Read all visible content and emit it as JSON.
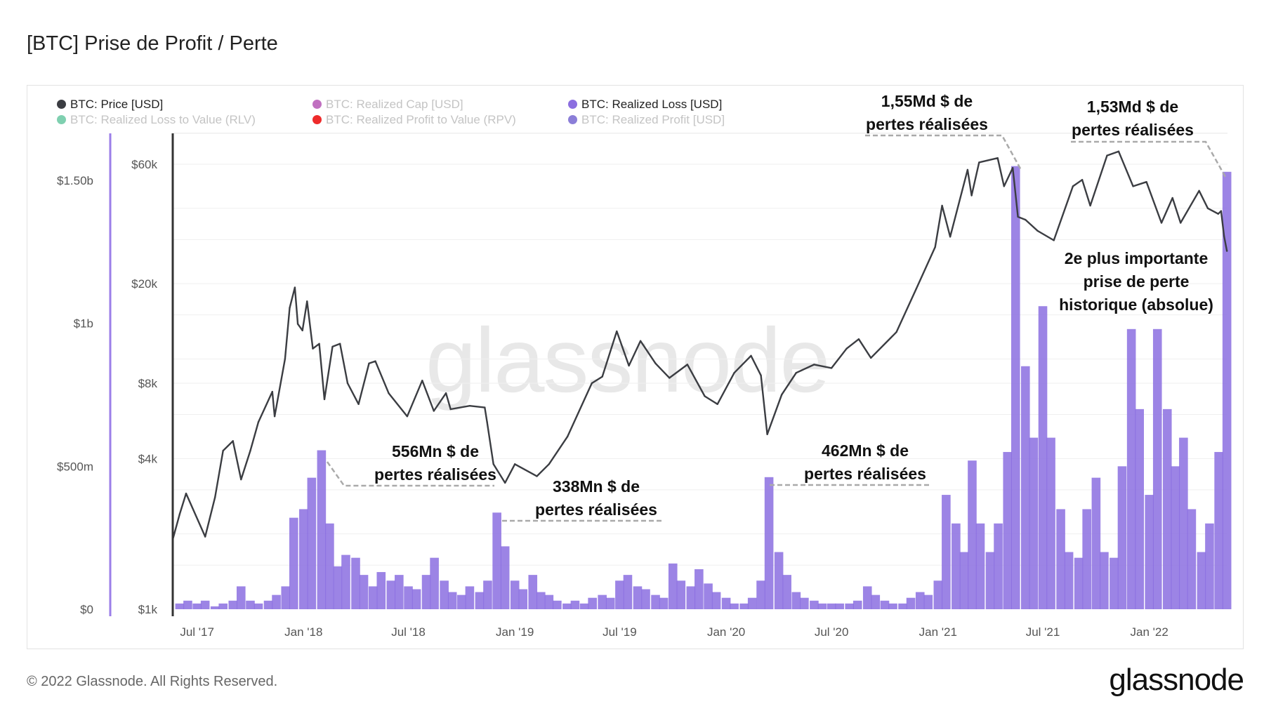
{
  "title": "[BTC] Prise de Profit / Perte",
  "footer": "© 2022 Glassnode. All Rights Reserved.",
  "logo": "glassnode",
  "watermark": "glassnode",
  "colors": {
    "price": "#3b3d42",
    "loss": "#8b6ee0",
    "loss_axis": "#9b7ee8",
    "grid": "#efefef",
    "leader": "#aaaaaa"
  },
  "legend": [
    {
      "label": "BTC: Price [USD]",
      "color": "#3b3d42",
      "active": true
    },
    {
      "label": "BTC: Realized Cap [USD]",
      "color": "#c070c0",
      "active": false
    },
    {
      "label": "BTC: Realized Loss [USD]",
      "color": "#8b6ee0",
      "active": true
    },
    {
      "label": "BTC: Realized Profit [USD]",
      "color": "#8b7ed8",
      "active": false
    },
    {
      "label": "BTC: Realized Loss to Value (RLV)",
      "color": "#7fd0b0",
      "active": false
    },
    {
      "label": "BTC: Realized Profit to Value (RPV)",
      "color": "#ee2b2b",
      "active": false
    }
  ],
  "annotations": [
    {
      "lines": [
        "556Mn $ de",
        "pertes réalisées"
      ]
    },
    {
      "lines": [
        "338Mn $ de",
        "pertes réalisées"
      ]
    },
    {
      "lines": [
        "462Mn $ de",
        "pertes réalisées"
      ]
    },
    {
      "lines": [
        "1,55Md $ de",
        "pertes réalisées"
      ]
    },
    {
      "lines": [
        "1,53Md $ de",
        "pertes réalisées"
      ]
    },
    {
      "lines": [
        "2e plus importante",
        "prise de perte",
        "historique (absolue)"
      ]
    }
  ],
  "chart_data": {
    "type": "bar+line",
    "x_range": [
      "2017-05-20",
      "2022-05-16"
    ],
    "x_ticks": [
      {
        "date": "2017-07-01",
        "label": "Jul '17"
      },
      {
        "date": "2018-01-01",
        "label": "Jan '18"
      },
      {
        "date": "2018-07-01",
        "label": "Jul '18"
      },
      {
        "date": "2019-01-01",
        "label": "Jan '19"
      },
      {
        "date": "2019-07-01",
        "label": "Jul '19"
      },
      {
        "date": "2020-01-01",
        "label": "Jan '20"
      },
      {
        "date": "2020-07-01",
        "label": "Jul '20"
      },
      {
        "date": "2021-01-01",
        "label": "Jan '21"
      },
      {
        "date": "2021-07-01",
        "label": "Jul '21"
      },
      {
        "date": "2022-01-01",
        "label": "Jan '22"
      }
    ],
    "y_left": {
      "scale": "linear",
      "range": [
        0,
        1.5
      ],
      "unit": "billion USD",
      "ticks": [
        {
          "v": 0,
          "label": "$0"
        },
        {
          "v": 0.5,
          "label": "$500m"
        },
        {
          "v": 1,
          "label": "$1b"
        },
        {
          "v": 1.5,
          "label": "$1.50b"
        }
      ]
    },
    "y_right": {
      "scale": "log",
      "range": [
        1000,
        60000
      ],
      "ticks": [
        {
          "v": 1000,
          "label": "$1k"
        },
        {
          "v": 4000,
          "label": "$4k"
        },
        {
          "v": 8000,
          "label": "$8k"
        },
        {
          "v": 20000,
          "label": "$20k"
        },
        {
          "v": 60000,
          "label": "$60k"
        }
      ]
    },
    "grid": true,
    "legend_position": "top",
    "series": [
      {
        "name": "BTC: Price [USD]",
        "type": "line",
        "axis": "right",
        "points": [
          [
            "2017-05-20",
            1900
          ],
          [
            "2017-06-01",
            2400
          ],
          [
            "2017-06-12",
            2900
          ],
          [
            "2017-07-15",
            1950
          ],
          [
            "2017-08-01",
            2800
          ],
          [
            "2017-08-15",
            4300
          ],
          [
            "2017-09-01",
            4700
          ],
          [
            "2017-09-15",
            3300
          ],
          [
            "2017-10-01",
            4300
          ],
          [
            "2017-10-15",
            5600
          ],
          [
            "2017-11-08",
            7400
          ],
          [
            "2017-11-12",
            5900
          ],
          [
            "2017-11-30",
            10000
          ],
          [
            "2017-12-08",
            16000
          ],
          [
            "2017-12-17",
            19300
          ],
          [
            "2017-12-22",
            13800
          ],
          [
            "2017-12-30",
            13000
          ],
          [
            "2018-01-07",
            17000
          ],
          [
            "2018-01-17",
            11000
          ],
          [
            "2018-01-28",
            11500
          ],
          [
            "2018-02-06",
            6900
          ],
          [
            "2018-02-20",
            11200
          ],
          [
            "2018-03-05",
            11500
          ],
          [
            "2018-03-18",
            8000
          ],
          [
            "2018-04-06",
            6600
          ],
          [
            "2018-04-24",
            9600
          ],
          [
            "2018-05-05",
            9800
          ],
          [
            "2018-05-28",
            7300
          ],
          [
            "2018-06-29",
            5900
          ],
          [
            "2018-07-25",
            8200
          ],
          [
            "2018-08-14",
            6200
          ],
          [
            "2018-09-04",
            7300
          ],
          [
            "2018-09-12",
            6300
          ],
          [
            "2018-10-15",
            6500
          ],
          [
            "2018-11-10",
            6400
          ],
          [
            "2018-11-14",
            5600
          ],
          [
            "2018-11-25",
            3800
          ],
          [
            "2018-12-15",
            3200
          ],
          [
            "2019-01-01",
            3800
          ],
          [
            "2019-02-08",
            3400
          ],
          [
            "2019-03-01",
            3800
          ],
          [
            "2019-04-02",
            4900
          ],
          [
            "2019-05-14",
            8000
          ],
          [
            "2019-06-01",
            8500
          ],
          [
            "2019-06-26",
            12900
          ],
          [
            "2019-07-17",
            9400
          ],
          [
            "2019-08-06",
            11800
          ],
          [
            "2019-09-01",
            9600
          ],
          [
            "2019-09-25",
            8400
          ],
          [
            "2019-10-26",
            9500
          ],
          [
            "2019-11-25",
            7100
          ],
          [
            "2019-12-17",
            6600
          ],
          [
            "2020-01-15",
            8800
          ],
          [
            "2020-02-13",
            10300
          ],
          [
            "2020-03-01",
            8600
          ],
          [
            "2020-03-12",
            5000
          ],
          [
            "2020-04-06",
            7200
          ],
          [
            "2020-05-01",
            8800
          ],
          [
            "2020-06-01",
            9500
          ],
          [
            "2020-07-01",
            9200
          ],
          [
            "2020-07-27",
            11000
          ],
          [
            "2020-08-17",
            12000
          ],
          [
            "2020-09-07",
            10100
          ],
          [
            "2020-10-21",
            12800
          ],
          [
            "2020-11-24",
            19000
          ],
          [
            "2020-12-27",
            28000
          ],
          [
            "2021-01-08",
            41000
          ],
          [
            "2021-01-22",
            30800
          ],
          [
            "2021-02-21",
            57000
          ],
          [
            "2021-02-28",
            45000
          ],
          [
            "2021-03-13",
            61000
          ],
          [
            "2021-04-14",
            63500
          ],
          [
            "2021-04-25",
            49000
          ],
          [
            "2021-05-10",
            58000
          ],
          [
            "2021-05-19",
            37000
          ],
          [
            "2021-06-01",
            36000
          ],
          [
            "2021-06-22",
            32500
          ],
          [
            "2021-07-20",
            29800
          ],
          [
            "2021-08-22",
            49000
          ],
          [
            "2021-09-07",
            52000
          ],
          [
            "2021-09-21",
            41000
          ],
          [
            "2021-10-20",
            65000
          ],
          [
            "2021-11-09",
            67500
          ],
          [
            "2021-12-04",
            49000
          ],
          [
            "2021-12-27",
            51000
          ],
          [
            "2022-01-22",
            35000
          ],
          [
            "2022-02-10",
            44000
          ],
          [
            "2022-02-24",
            35000
          ],
          [
            "2022-03-28",
            47000
          ],
          [
            "2022-04-12",
            40000
          ],
          [
            "2022-04-30",
            38000
          ],
          [
            "2022-05-05",
            39000
          ],
          [
            "2022-05-10",
            31000
          ],
          [
            "2022-05-15",
            27000
          ]
        ]
      },
      {
        "name": "BTC: Realized Loss [USD]",
        "type": "bar",
        "axis": "left",
        "points": [
          [
            "2017-06-01",
            0.02
          ],
          [
            "2017-06-15",
            0.03
          ],
          [
            "2017-07-01",
            0.02
          ],
          [
            "2017-07-15",
            0.03
          ],
          [
            "2017-08-01",
            0.01
          ],
          [
            "2017-08-15",
            0.02
          ],
          [
            "2017-09-01",
            0.03
          ],
          [
            "2017-09-15",
            0.08
          ],
          [
            "2017-10-01",
            0.03
          ],
          [
            "2017-10-15",
            0.02
          ],
          [
            "2017-11-01",
            0.03
          ],
          [
            "2017-11-15",
            0.05
          ],
          [
            "2017-12-01",
            0.08
          ],
          [
            "2017-12-15",
            0.32
          ],
          [
            "2018-01-01",
            0.35
          ],
          [
            "2018-01-15",
            0.46
          ],
          [
            "2018-02-01",
            0.556
          ],
          [
            "2018-02-15",
            0.3
          ],
          [
            "2018-03-01",
            0.15
          ],
          [
            "2018-03-15",
            0.19
          ],
          [
            "2018-04-01",
            0.18
          ],
          [
            "2018-04-15",
            0.12
          ],
          [
            "2018-05-01",
            0.08
          ],
          [
            "2018-05-15",
            0.13
          ],
          [
            "2018-06-01",
            0.1
          ],
          [
            "2018-06-15",
            0.12
          ],
          [
            "2018-07-01",
            0.08
          ],
          [
            "2018-07-15",
            0.07
          ],
          [
            "2018-08-01",
            0.12
          ],
          [
            "2018-08-15",
            0.18
          ],
          [
            "2018-09-01",
            0.1
          ],
          [
            "2018-09-15",
            0.06
          ],
          [
            "2018-10-01",
            0.05
          ],
          [
            "2018-10-15",
            0.08
          ],
          [
            "2018-11-01",
            0.06
          ],
          [
            "2018-11-15",
            0.1
          ],
          [
            "2018-12-01",
            0.338
          ],
          [
            "2018-12-15",
            0.22
          ],
          [
            "2019-01-01",
            0.1
          ],
          [
            "2019-01-15",
            0.07
          ],
          [
            "2019-02-01",
            0.12
          ],
          [
            "2019-02-15",
            0.06
          ],
          [
            "2019-03-01",
            0.05
          ],
          [
            "2019-03-15",
            0.03
          ],
          [
            "2019-04-01",
            0.02
          ],
          [
            "2019-04-15",
            0.03
          ],
          [
            "2019-05-01",
            0.02
          ],
          [
            "2019-05-15",
            0.04
          ],
          [
            "2019-06-01",
            0.05
          ],
          [
            "2019-06-15",
            0.04
          ],
          [
            "2019-07-01",
            0.1
          ],
          [
            "2019-07-15",
            0.12
          ],
          [
            "2019-08-01",
            0.08
          ],
          [
            "2019-08-15",
            0.07
          ],
          [
            "2019-09-01",
            0.05
          ],
          [
            "2019-09-15",
            0.04
          ],
          [
            "2019-10-01",
            0.16
          ],
          [
            "2019-10-15",
            0.1
          ],
          [
            "2019-11-01",
            0.08
          ],
          [
            "2019-11-15",
            0.14
          ],
          [
            "2019-12-01",
            0.09
          ],
          [
            "2019-12-15",
            0.06
          ],
          [
            "2020-01-01",
            0.04
          ],
          [
            "2020-01-15",
            0.02
          ],
          [
            "2020-02-01",
            0.02
          ],
          [
            "2020-02-15",
            0.04
          ],
          [
            "2020-03-01",
            0.1
          ],
          [
            "2020-03-15",
            0.462
          ],
          [
            "2020-04-01",
            0.2
          ],
          [
            "2020-04-15",
            0.12
          ],
          [
            "2020-05-01",
            0.06
          ],
          [
            "2020-05-15",
            0.04
          ],
          [
            "2020-06-01",
            0.03
          ],
          [
            "2020-06-15",
            0.02
          ],
          [
            "2020-07-01",
            0.02
          ],
          [
            "2020-07-15",
            0.02
          ],
          [
            "2020-08-01",
            0.02
          ],
          [
            "2020-08-15",
            0.03
          ],
          [
            "2020-09-01",
            0.08
          ],
          [
            "2020-09-15",
            0.05
          ],
          [
            "2020-10-01",
            0.03
          ],
          [
            "2020-10-15",
            0.02
          ],
          [
            "2020-11-01",
            0.02
          ],
          [
            "2020-11-15",
            0.04
          ],
          [
            "2020-12-01",
            0.06
          ],
          [
            "2020-12-15",
            0.05
          ],
          [
            "2021-01-01",
            0.1
          ],
          [
            "2021-01-15",
            0.4
          ],
          [
            "2021-02-01",
            0.3
          ],
          [
            "2021-02-15",
            0.2
          ],
          [
            "2021-03-01",
            0.52
          ],
          [
            "2021-03-15",
            0.3
          ],
          [
            "2021-04-01",
            0.2
          ],
          [
            "2021-04-15",
            0.3
          ],
          [
            "2021-05-01",
            0.55
          ],
          [
            "2021-05-15",
            1.55
          ],
          [
            "2021-06-01",
            0.85
          ],
          [
            "2021-06-15",
            0.6
          ],
          [
            "2021-07-01",
            1.06
          ],
          [
            "2021-07-15",
            0.6
          ],
          [
            "2021-08-01",
            0.35
          ],
          [
            "2021-08-15",
            0.2
          ],
          [
            "2021-09-01",
            0.18
          ],
          [
            "2021-09-15",
            0.35
          ],
          [
            "2021-10-01",
            0.46
          ],
          [
            "2021-10-15",
            0.2
          ],
          [
            "2021-11-01",
            0.18
          ],
          [
            "2021-11-15",
            0.5
          ],
          [
            "2021-12-01",
            0.98
          ],
          [
            "2021-12-15",
            0.7
          ],
          [
            "2022-01-01",
            0.4
          ],
          [
            "2022-01-15",
            0.98
          ],
          [
            "2022-02-01",
            0.7
          ],
          [
            "2022-02-15",
            0.5
          ],
          [
            "2022-03-01",
            0.6
          ],
          [
            "2022-03-15",
            0.35
          ],
          [
            "2022-04-01",
            0.2
          ],
          [
            "2022-04-15",
            0.3
          ],
          [
            "2022-05-01",
            0.55
          ],
          [
            "2022-05-15",
            1.53
          ]
        ]
      }
    ]
  }
}
